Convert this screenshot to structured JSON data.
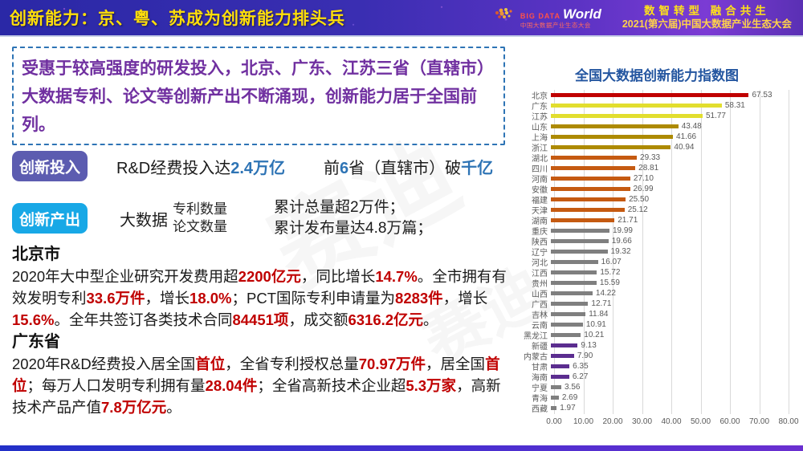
{
  "header": {
    "title": "创新能力：京、粤、苏成为创新能力排头兵",
    "logo": {
      "big": "BIG DATA",
      "world": "World",
      "sub": "中国大数据产业生态大会"
    },
    "slogan_line1": "数智转型 融合共生",
    "slogan_line2": "2021(第六届)中国大数据产业生态大会"
  },
  "intro": {
    "text": "受惠于较高强度的研发投入，北京、广东、江苏三省（直辖市）大数据专利、论文等创新产出不断涌现，创新能力居于全国前列。"
  },
  "invest": {
    "badge": "创新投入",
    "part1": [
      {
        "t": "R&D经费投入达"
      },
      {
        "t": "2.4万亿",
        "em": true
      }
    ],
    "part2": [
      {
        "t": "前"
      },
      {
        "t": "6",
        "em": true
      },
      {
        "t": "省（直辖市）破"
      },
      {
        "t": "千亿",
        "em": true
      }
    ]
  },
  "output": {
    "badge": "创新产出",
    "lead": "大数据",
    "stack": [
      "专利数量",
      "论文数量"
    ],
    "results": [
      "累计总量超2万件；",
      "累计发布量达4.8万篇；"
    ]
  },
  "sections": [
    {
      "heading": "北京市",
      "segments": [
        {
          "t": "2020年大中型企业研究开发费用超"
        },
        {
          "t": "2200亿元",
          "em": true
        },
        {
          "t": "，同比增长"
        },
        {
          "t": "14.7%",
          "em": true
        },
        {
          "t": "。全市拥有有效发明专利"
        },
        {
          "t": "33.6万件",
          "em": true
        },
        {
          "t": "，增长"
        },
        {
          "t": "18.0%",
          "em": true
        },
        {
          "t": "；PCT国际专利申请量为"
        },
        {
          "t": "8283件",
          "em": true
        },
        {
          "t": "，增长"
        },
        {
          "t": "15.6%",
          "em": true
        },
        {
          "t": "。全年共签订各类技术合同"
        },
        {
          "t": "84451项",
          "em": true
        },
        {
          "t": "，成交额"
        },
        {
          "t": "6316.2亿元",
          "em": true
        },
        {
          "t": "。"
        }
      ]
    },
    {
      "heading": "广东省",
      "segments": [
        {
          "t": "2020年R&D经费投入居全国"
        },
        {
          "t": "首位",
          "em": true
        },
        {
          "t": "，全省专利授权总量"
        },
        {
          "t": "70.97万件",
          "em": true
        },
        {
          "t": "，居全国"
        },
        {
          "t": "首位",
          "em": true
        },
        {
          "t": "；每万人口发明专利拥有量"
        },
        {
          "t": "28.04件",
          "em": true
        },
        {
          "t": "；全省高新技术企业超"
        },
        {
          "t": "5.3万家",
          "em": true
        },
        {
          "t": "，高新技术产品产值"
        },
        {
          "t": "7.8万亿元",
          "em": true
        },
        {
          "t": "。"
        }
      ]
    }
  ],
  "chart_data": {
    "type": "bar",
    "orientation": "horizontal",
    "title": "全国大数据创新能力指数图",
    "categories": [
      "北京",
      "广东",
      "江苏",
      "山东",
      "上海",
      "浙江",
      "湖北",
      "四川",
      "河南",
      "安徽",
      "福建",
      "天津",
      "湖南",
      "重庆",
      "陕西",
      "辽宁",
      "河北",
      "江西",
      "贵州",
      "山西",
      "广西",
      "吉林",
      "云南",
      "黑龙江",
      "新疆",
      "内蒙古",
      "甘肃",
      "海南",
      "宁夏",
      "青海",
      "西藏"
    ],
    "values": [
      67.53,
      58.31,
      51.77,
      43.48,
      41.66,
      40.94,
      29.33,
      28.81,
      27.1,
      26.99,
      25.5,
      25.12,
      21.71,
      19.99,
      19.66,
      19.32,
      16.07,
      15.72,
      15.59,
      14.22,
      12.71,
      11.84,
      10.91,
      10.21,
      9.13,
      7.9,
      6.35,
      6.27,
      3.56,
      2.69,
      1.97
    ],
    "bar_color_keys": [
      "red",
      "yellow",
      "yellow",
      "gold",
      "gold",
      "gold",
      "orange",
      "orange",
      "orange",
      "orange",
      "orange",
      "orange",
      "orange",
      "gray",
      "gray",
      "gray",
      "gray",
      "gray",
      "gray",
      "gray",
      "gray",
      "gray",
      "gray",
      "gray",
      "purple",
      "purple",
      "purple",
      "purple",
      "gray",
      "gray",
      "gray"
    ],
    "palette": {
      "red": "#c00000",
      "yellow": "#e2de2e",
      "gold": "#ad8a00",
      "orange": "#c55a11",
      "gray": "#7f7f7f",
      "purple": "#5b2d8f"
    },
    "xlim": [
      0,
      80
    ],
    "xticks": [
      "0.00",
      "10.00",
      "20.00",
      "30.00",
      "40.00",
      "50.00",
      "60.00",
      "70.00",
      "80.00"
    ],
    "grid": true,
    "value_labels": true,
    "xlabel": "",
    "ylabel": ""
  },
  "watermark": {
    "text": "赛迪"
  }
}
